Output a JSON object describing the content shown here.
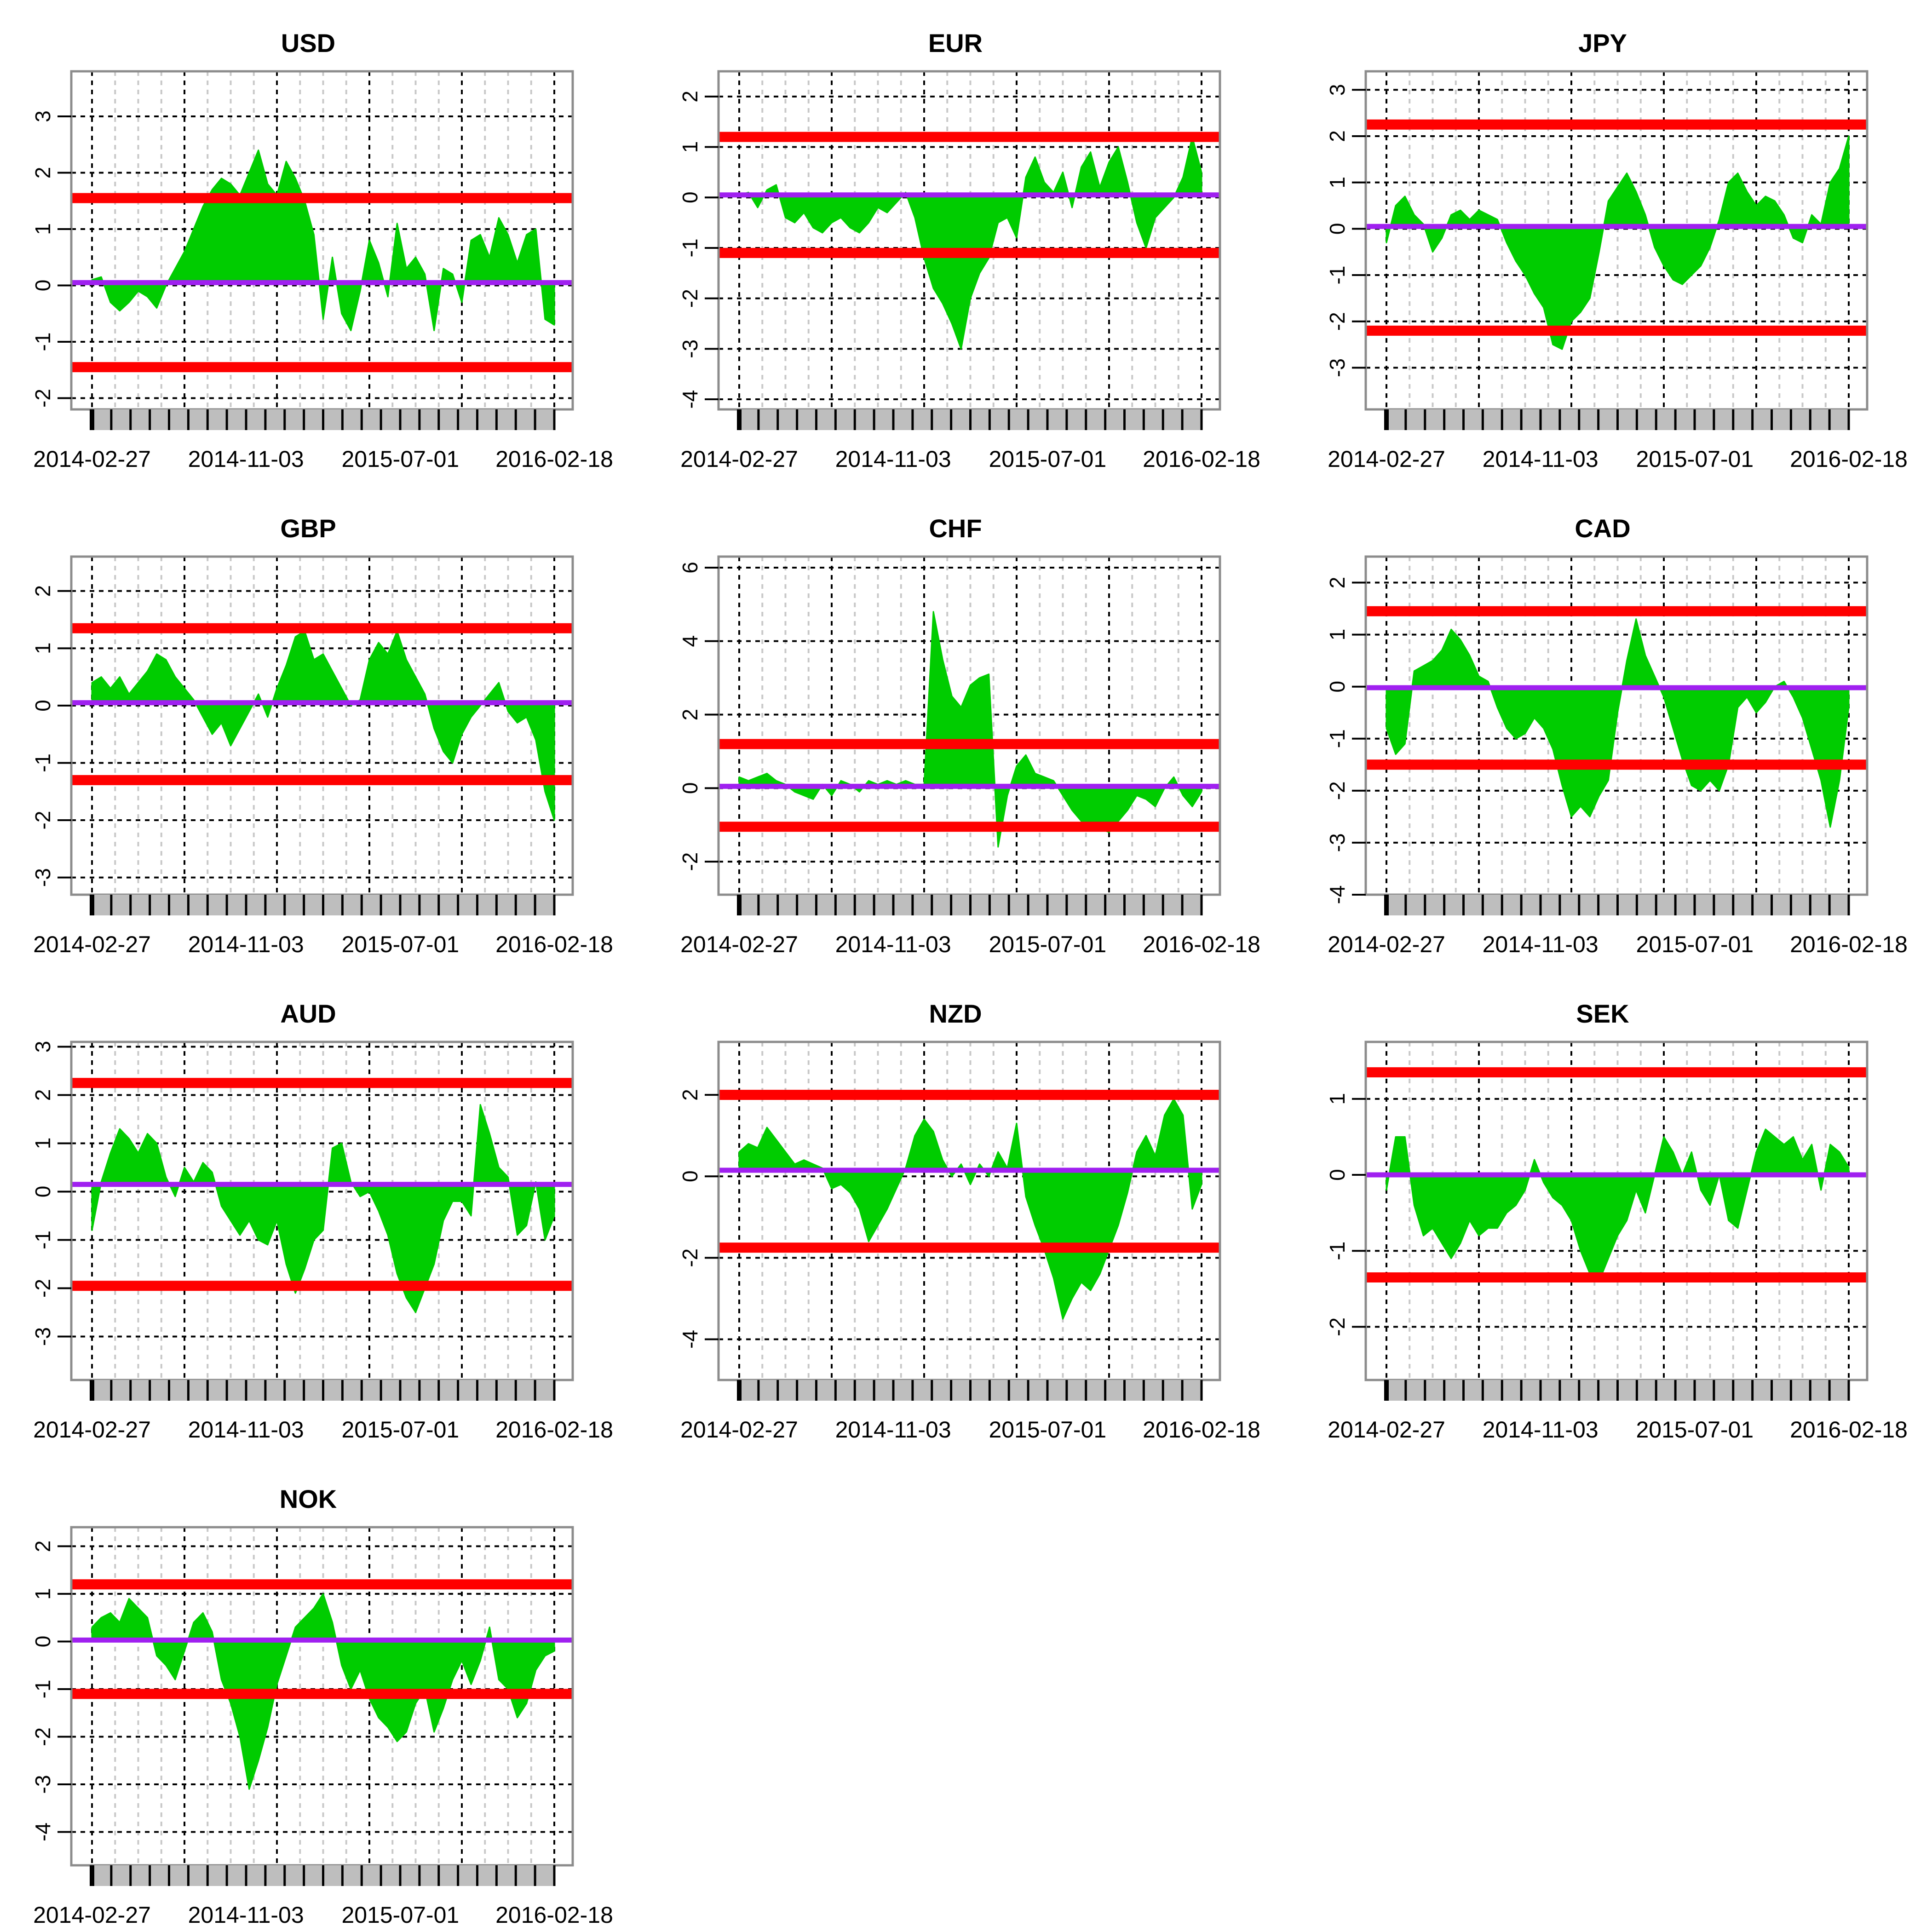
{
  "figure": {
    "background": "#ffffff"
  },
  "colors": {
    "fill": "#00cc00",
    "mean": "#a020f0",
    "band": "#ff0000",
    "grid_major": "#000000",
    "grid_minor": "#c8c8c8",
    "frame": "#8c8c8c",
    "tick_strip": "#bebebe"
  },
  "x_axis": {
    "labels": [
      "2014-02-27",
      "2014-11-03",
      "2015-07-01",
      "2016-02-18"
    ],
    "label_positions": [
      0,
      0.333,
      0.667,
      1.0
    ],
    "major_grid": [
      0,
      0.2,
      0.4,
      0.6,
      0.8,
      1.0
    ],
    "minor_grid": [
      0.05,
      0.1,
      0.15,
      0.25,
      0.3,
      0.35,
      0.45,
      0.5,
      0.55,
      0.65,
      0.7,
      0.75,
      0.85,
      0.9,
      0.95
    ],
    "n_ticks": 25
  },
  "chart_data": [
    {
      "type": "area",
      "title": "USD",
      "ylim": [
        -2.2,
        3.8
      ],
      "yticks": [
        -2,
        -1,
        0,
        1,
        2,
        3
      ],
      "mean": 0.05,
      "bands": [
        1.55,
        -1.45
      ],
      "x": [
        0,
        0.02,
        0.04,
        0.06,
        0.08,
        0.1,
        0.12,
        0.14,
        0.16,
        0.18,
        0.2,
        0.22,
        0.24,
        0.26,
        0.28,
        0.3,
        0.32,
        0.34,
        0.36,
        0.38,
        0.4,
        0.42,
        0.44,
        0.46,
        0.48,
        0.5,
        0.52,
        0.54,
        0.56,
        0.58,
        0.6,
        0.62,
        0.64,
        0.66,
        0.68,
        0.7,
        0.72,
        0.74,
        0.76,
        0.78,
        0.8,
        0.82,
        0.84,
        0.86,
        0.88,
        0.9,
        0.92,
        0.94,
        0.96,
        0.98,
        1.0
      ],
      "values": [
        0.1,
        0.15,
        -0.3,
        -0.45,
        -0.3,
        -0.1,
        -0.2,
        -0.4,
        0.0,
        0.3,
        0.6,
        1.0,
        1.4,
        1.7,
        1.9,
        1.8,
        1.6,
        2.0,
        2.4,
        1.8,
        1.6,
        2.2,
        1.9,
        1.5,
        0.9,
        -0.6,
        0.5,
        -0.5,
        -0.8,
        -0.1,
        0.8,
        0.4,
        -0.2,
        1.1,
        0.3,
        0.5,
        0.2,
        -0.8,
        0.3,
        0.2,
        -0.3,
        0.8,
        0.9,
        0.5,
        1.2,
        0.9,
        0.4,
        0.9,
        1.0,
        -0.6,
        -0.7
      ]
    },
    {
      "type": "area",
      "title": "EUR",
      "ylim": [
        -4.2,
        2.5
      ],
      "yticks": [
        -4,
        -3,
        -2,
        -1,
        0,
        1,
        2
      ],
      "mean": 0.05,
      "bands": [
        1.2,
        -1.1
      ],
      "x": [
        0,
        0.02,
        0.04,
        0.06,
        0.08,
        0.1,
        0.12,
        0.14,
        0.16,
        0.18,
        0.2,
        0.22,
        0.24,
        0.26,
        0.28,
        0.3,
        0.32,
        0.34,
        0.36,
        0.38,
        0.4,
        0.42,
        0.44,
        0.46,
        0.48,
        0.5,
        0.52,
        0.54,
        0.56,
        0.58,
        0.6,
        0.62,
        0.64,
        0.66,
        0.68,
        0.7,
        0.72,
        0.74,
        0.76,
        0.78,
        0.8,
        0.82,
        0.84,
        0.86,
        0.88,
        0.9,
        0.92,
        0.94,
        0.96,
        0.98,
        1.0
      ],
      "values": [
        0.05,
        0.1,
        -0.2,
        0.15,
        0.25,
        -0.4,
        -0.5,
        -0.3,
        -0.6,
        -0.7,
        -0.5,
        -0.4,
        -0.6,
        -0.7,
        -0.5,
        -0.2,
        -0.3,
        -0.1,
        0.1,
        -0.4,
        -1.2,
        -1.8,
        -2.1,
        -2.5,
        -3.0,
        -2.0,
        -1.5,
        -1.2,
        -0.5,
        -0.4,
        -0.8,
        0.4,
        0.8,
        0.3,
        0.1,
        0.5,
        -0.2,
        0.6,
        0.9,
        0.2,
        0.7,
        1.0,
        0.3,
        -0.5,
        -1.0,
        -0.4,
        -0.2,
        0.0,
        0.4,
        1.2,
        0.5
      ]
    },
    {
      "type": "area",
      "title": "JPY",
      "ylim": [
        -3.9,
        3.4
      ],
      "yticks": [
        -3,
        -2,
        -1,
        0,
        1,
        2,
        3
      ],
      "mean": 0.05,
      "bands": [
        2.25,
        -2.2
      ],
      "x": [
        0,
        0.02,
        0.04,
        0.06,
        0.08,
        0.1,
        0.12,
        0.14,
        0.16,
        0.18,
        0.2,
        0.22,
        0.24,
        0.26,
        0.28,
        0.3,
        0.32,
        0.34,
        0.36,
        0.38,
        0.4,
        0.42,
        0.44,
        0.46,
        0.48,
        0.5,
        0.52,
        0.54,
        0.56,
        0.58,
        0.6,
        0.62,
        0.64,
        0.66,
        0.68,
        0.7,
        0.72,
        0.74,
        0.76,
        0.78,
        0.8,
        0.82,
        0.84,
        0.86,
        0.88,
        0.9,
        0.92,
        0.94,
        0.96,
        0.98,
        1.0
      ],
      "values": [
        -0.3,
        0.5,
        0.7,
        0.3,
        0.1,
        -0.5,
        -0.2,
        0.3,
        0.4,
        0.2,
        0.4,
        0.3,
        0.2,
        -0.3,
        -0.7,
        -1.0,
        -1.4,
        -1.7,
        -2.5,
        -2.6,
        -2.0,
        -1.8,
        -1.5,
        -0.5,
        0.6,
        0.9,
        1.2,
        0.8,
        0.3,
        -0.4,
        -0.8,
        -1.1,
        -1.2,
        -1.0,
        -0.8,
        -0.4,
        0.2,
        1.0,
        1.2,
        0.8,
        0.5,
        0.7,
        0.6,
        0.3,
        -0.2,
        -0.3,
        0.3,
        0.1,
        1.0,
        1.3,
        2.0
      ]
    },
    {
      "type": "area",
      "title": "GBP",
      "ylim": [
        -3.3,
        2.6
      ],
      "yticks": [
        -3,
        -2,
        -1,
        0,
        1,
        2
      ],
      "mean": 0.05,
      "bands": [
        1.35,
        -1.3
      ],
      "x": [
        0,
        0.02,
        0.04,
        0.06,
        0.08,
        0.1,
        0.12,
        0.14,
        0.16,
        0.18,
        0.2,
        0.22,
        0.24,
        0.26,
        0.28,
        0.3,
        0.32,
        0.34,
        0.36,
        0.38,
        0.4,
        0.42,
        0.44,
        0.46,
        0.48,
        0.5,
        0.52,
        0.54,
        0.56,
        0.58,
        0.6,
        0.62,
        0.64,
        0.66,
        0.68,
        0.7,
        0.72,
        0.74,
        0.76,
        0.78,
        0.8,
        0.82,
        0.84,
        0.86,
        0.88,
        0.9,
        0.92,
        0.94,
        0.96,
        0.98,
        1.0
      ],
      "values": [
        0.4,
        0.5,
        0.3,
        0.5,
        0.2,
        0.4,
        0.6,
        0.9,
        0.8,
        0.5,
        0.3,
        0.1,
        -0.2,
        -0.5,
        -0.3,
        -0.7,
        -0.4,
        -0.1,
        0.2,
        -0.2,
        0.3,
        0.7,
        1.2,
        1.3,
        0.8,
        0.9,
        0.6,
        0.3,
        0.0,
        0.1,
        0.8,
        1.1,
        0.9,
        1.3,
        0.8,
        0.5,
        0.2,
        -0.4,
        -0.8,
        -1.0,
        -0.5,
        -0.2,
        0.0,
        0.2,
        0.4,
        -0.1,
        -0.3,
        -0.2,
        -0.6,
        -1.5,
        -2.0
      ]
    },
    {
      "type": "area",
      "title": "CHF",
      "ylim": [
        -2.9,
        6.3
      ],
      "yticks": [
        -2,
        0,
        2,
        4,
        6
      ],
      "mean": 0.05,
      "bands": [
        1.2,
        -1.05
      ],
      "x": [
        0,
        0.02,
        0.04,
        0.06,
        0.08,
        0.1,
        0.12,
        0.14,
        0.16,
        0.18,
        0.2,
        0.22,
        0.24,
        0.26,
        0.28,
        0.3,
        0.32,
        0.34,
        0.36,
        0.38,
        0.4,
        0.42,
        0.44,
        0.46,
        0.48,
        0.5,
        0.52,
        0.54,
        0.56,
        0.58,
        0.6,
        0.62,
        0.64,
        0.66,
        0.68,
        0.7,
        0.72,
        0.74,
        0.76,
        0.78,
        0.8,
        0.82,
        0.84,
        0.86,
        0.88,
        0.9,
        0.92,
        0.94,
        0.96,
        0.98,
        1.0
      ],
      "values": [
        0.3,
        0.2,
        0.3,
        0.4,
        0.2,
        0.1,
        -0.1,
        -0.2,
        -0.3,
        0.1,
        -0.2,
        0.2,
        0.1,
        -0.1,
        0.2,
        0.1,
        0.2,
        0.1,
        0.2,
        0.1,
        0.1,
        4.8,
        3.5,
        2.5,
        2.2,
        2.8,
        3.0,
        3.1,
        -1.6,
        -0.2,
        0.6,
        0.9,
        0.4,
        0.3,
        0.2,
        -0.2,
        -0.6,
        -0.9,
        -1.0,
        -1.1,
        -1.2,
        -0.9,
        -0.6,
        -0.2,
        -0.3,
        -0.5,
        0.0,
        0.3,
        -0.2,
        -0.5,
        -0.1
      ]
    },
    {
      "type": "area",
      "title": "CAD",
      "ylim": [
        -4.0,
        2.5
      ],
      "yticks": [
        -4,
        -3,
        -2,
        -1,
        0,
        1,
        2
      ],
      "mean": -0.02,
      "bands": [
        1.45,
        -1.5
      ],
      "x": [
        0,
        0.02,
        0.04,
        0.06,
        0.08,
        0.1,
        0.12,
        0.14,
        0.16,
        0.18,
        0.2,
        0.22,
        0.24,
        0.26,
        0.28,
        0.3,
        0.32,
        0.34,
        0.36,
        0.38,
        0.4,
        0.42,
        0.44,
        0.46,
        0.48,
        0.5,
        0.52,
        0.54,
        0.56,
        0.58,
        0.6,
        0.62,
        0.64,
        0.66,
        0.68,
        0.7,
        0.72,
        0.74,
        0.76,
        0.78,
        0.8,
        0.82,
        0.84,
        0.86,
        0.88,
        0.9,
        0.92,
        0.94,
        0.96,
        0.98,
        1.0
      ],
      "values": [
        -0.8,
        -1.3,
        -1.1,
        0.3,
        0.4,
        0.5,
        0.7,
        1.1,
        0.9,
        0.6,
        0.2,
        0.1,
        -0.4,
        -0.8,
        -1.0,
        -0.9,
        -0.6,
        -0.8,
        -1.2,
        -1.9,
        -2.5,
        -2.3,
        -2.5,
        -2.1,
        -1.8,
        -0.5,
        0.5,
        1.3,
        0.6,
        0.2,
        -0.2,
        -0.8,
        -1.4,
        -1.9,
        -2.0,
        -1.8,
        -2.0,
        -1.5,
        -0.4,
        -0.2,
        -0.5,
        -0.3,
        0.0,
        0.1,
        -0.2,
        -0.6,
        -1.2,
        -1.8,
        -2.7,
        -1.8,
        -0.4
      ]
    },
    {
      "type": "area",
      "title": "AUD",
      "ylim": [
        -3.9,
        3.1
      ],
      "yticks": [
        -3,
        -2,
        -1,
        0,
        1,
        2,
        3
      ],
      "mean": 0.15,
      "bands": [
        2.25,
        -1.95
      ],
      "x": [
        0,
        0.02,
        0.04,
        0.06,
        0.08,
        0.1,
        0.12,
        0.14,
        0.16,
        0.18,
        0.2,
        0.22,
        0.24,
        0.26,
        0.28,
        0.3,
        0.32,
        0.34,
        0.36,
        0.38,
        0.4,
        0.42,
        0.44,
        0.46,
        0.48,
        0.5,
        0.52,
        0.54,
        0.56,
        0.58,
        0.6,
        0.62,
        0.64,
        0.66,
        0.68,
        0.7,
        0.72,
        0.74,
        0.76,
        0.78,
        0.8,
        0.82,
        0.84,
        0.86,
        0.88,
        0.9,
        0.92,
        0.94,
        0.96,
        0.98,
        1.0
      ],
      "values": [
        -0.8,
        0.2,
        0.8,
        1.3,
        1.1,
        0.8,
        1.2,
        1.0,
        0.3,
        -0.1,
        0.5,
        0.2,
        0.6,
        0.4,
        -0.3,
        -0.6,
        -0.9,
        -0.6,
        -1.0,
        -1.1,
        -0.6,
        -1.5,
        -2.1,
        -1.6,
        -1.0,
        -0.8,
        0.9,
        1.0,
        0.2,
        -0.1,
        0.0,
        -0.4,
        -0.9,
        -1.7,
        -2.2,
        -2.5,
        -2.0,
        -1.5,
        -0.6,
        -0.2,
        -0.2,
        -0.5,
        1.8,
        1.2,
        0.5,
        0.3,
        -0.9,
        -0.7,
        0.2,
        -1.0,
        -0.5
      ]
    },
    {
      "type": "area",
      "title": "NZD",
      "ylim": [
        -5.0,
        3.3
      ],
      "yticks": [
        -4,
        -2,
        0,
        2
      ],
      "mean": 0.15,
      "bands": [
        2.0,
        -1.75
      ],
      "x": [
        0,
        0.02,
        0.04,
        0.06,
        0.08,
        0.1,
        0.12,
        0.14,
        0.16,
        0.18,
        0.2,
        0.22,
        0.24,
        0.26,
        0.28,
        0.3,
        0.32,
        0.34,
        0.36,
        0.38,
        0.4,
        0.42,
        0.44,
        0.46,
        0.48,
        0.5,
        0.52,
        0.54,
        0.56,
        0.58,
        0.6,
        0.62,
        0.64,
        0.66,
        0.68,
        0.7,
        0.72,
        0.74,
        0.76,
        0.78,
        0.8,
        0.82,
        0.84,
        0.86,
        0.88,
        0.9,
        0.92,
        0.94,
        0.96,
        0.98,
        1.0
      ],
      "values": [
        0.6,
        0.8,
        0.7,
        1.2,
        0.9,
        0.6,
        0.3,
        0.4,
        0.3,
        0.2,
        -0.3,
        -0.2,
        -0.4,
        -0.8,
        -1.6,
        -1.2,
        -0.8,
        -0.3,
        0.2,
        1.0,
        1.4,
        1.1,
        0.4,
        0.0,
        0.3,
        -0.2,
        0.3,
        0.0,
        0.6,
        0.2,
        1.3,
        -0.5,
        -1.2,
        -1.8,
        -2.5,
        -3.5,
        -3.0,
        -2.6,
        -2.8,
        -2.4,
        -1.8,
        -1.2,
        -0.4,
        0.6,
        1.0,
        0.5,
        1.5,
        1.9,
        1.5,
        -0.8,
        -0.2
      ]
    },
    {
      "type": "area",
      "title": "SEK",
      "ylim": [
        -2.7,
        1.75
      ],
      "yticks": [
        -2,
        -1,
        0,
        1
      ],
      "mean": 0.0,
      "bands": [
        1.35,
        -1.35
      ],
      "x": [
        0,
        0.02,
        0.04,
        0.06,
        0.08,
        0.1,
        0.12,
        0.14,
        0.16,
        0.18,
        0.2,
        0.22,
        0.24,
        0.26,
        0.28,
        0.3,
        0.32,
        0.34,
        0.36,
        0.38,
        0.4,
        0.42,
        0.44,
        0.46,
        0.48,
        0.5,
        0.52,
        0.54,
        0.56,
        0.58,
        0.6,
        0.62,
        0.64,
        0.66,
        0.68,
        0.7,
        0.72,
        0.74,
        0.76,
        0.78,
        0.8,
        0.82,
        0.84,
        0.86,
        0.88,
        0.9,
        0.92,
        0.94,
        0.96,
        0.98,
        1.0
      ],
      "values": [
        -0.2,
        0.5,
        0.5,
        -0.4,
        -0.8,
        -0.7,
        -0.9,
        -1.1,
        -0.9,
        -0.6,
        -0.8,
        -0.7,
        -0.7,
        -0.5,
        -0.4,
        -0.2,
        0.2,
        -0.1,
        -0.3,
        -0.4,
        -0.6,
        -1.0,
        -1.3,
        -1.4,
        -1.1,
        -0.8,
        -0.6,
        -0.2,
        -0.5,
        0.0,
        0.5,
        0.3,
        0.0,
        0.3,
        -0.2,
        -0.4,
        0.0,
        -0.6,
        -0.7,
        -0.2,
        0.3,
        0.6,
        0.5,
        0.4,
        0.5,
        0.2,
        0.4,
        -0.2,
        0.4,
        0.3,
        0.1
      ]
    },
    {
      "type": "area",
      "title": "NOK",
      "ylim": [
        -4.7,
        2.4
      ],
      "yticks": [
        -4,
        -3,
        -2,
        -1,
        0,
        1,
        2
      ],
      "mean": 0.03,
      "bands": [
        1.2,
        -1.1
      ],
      "x": [
        0,
        0.02,
        0.04,
        0.06,
        0.08,
        0.1,
        0.12,
        0.14,
        0.16,
        0.18,
        0.2,
        0.22,
        0.24,
        0.26,
        0.28,
        0.3,
        0.32,
        0.34,
        0.36,
        0.38,
        0.4,
        0.42,
        0.44,
        0.46,
        0.48,
        0.5,
        0.52,
        0.54,
        0.56,
        0.58,
        0.6,
        0.62,
        0.64,
        0.66,
        0.68,
        0.7,
        0.72,
        0.74,
        0.76,
        0.78,
        0.8,
        0.82,
        0.84,
        0.86,
        0.88,
        0.9,
        0.92,
        0.94,
        0.96,
        0.98,
        1.0
      ],
      "values": [
        0.3,
        0.5,
        0.6,
        0.4,
        0.9,
        0.7,
        0.5,
        -0.3,
        -0.5,
        -0.8,
        -0.2,
        0.4,
        0.6,
        0.2,
        -0.8,
        -1.3,
        -2.0,
        -3.1,
        -2.5,
        -1.8,
        -0.9,
        -0.3,
        0.3,
        0.5,
        0.7,
        1.0,
        0.4,
        -0.5,
        -1.0,
        -0.6,
        -1.2,
        -1.6,
        -1.8,
        -2.1,
        -1.9,
        -1.3,
        -1.0,
        -1.9,
        -1.4,
        -0.8,
        -0.4,
        -0.9,
        -0.4,
        0.3,
        -0.8,
        -1.0,
        -1.6,
        -1.3,
        -0.6,
        -0.3,
        -0.2
      ]
    }
  ]
}
